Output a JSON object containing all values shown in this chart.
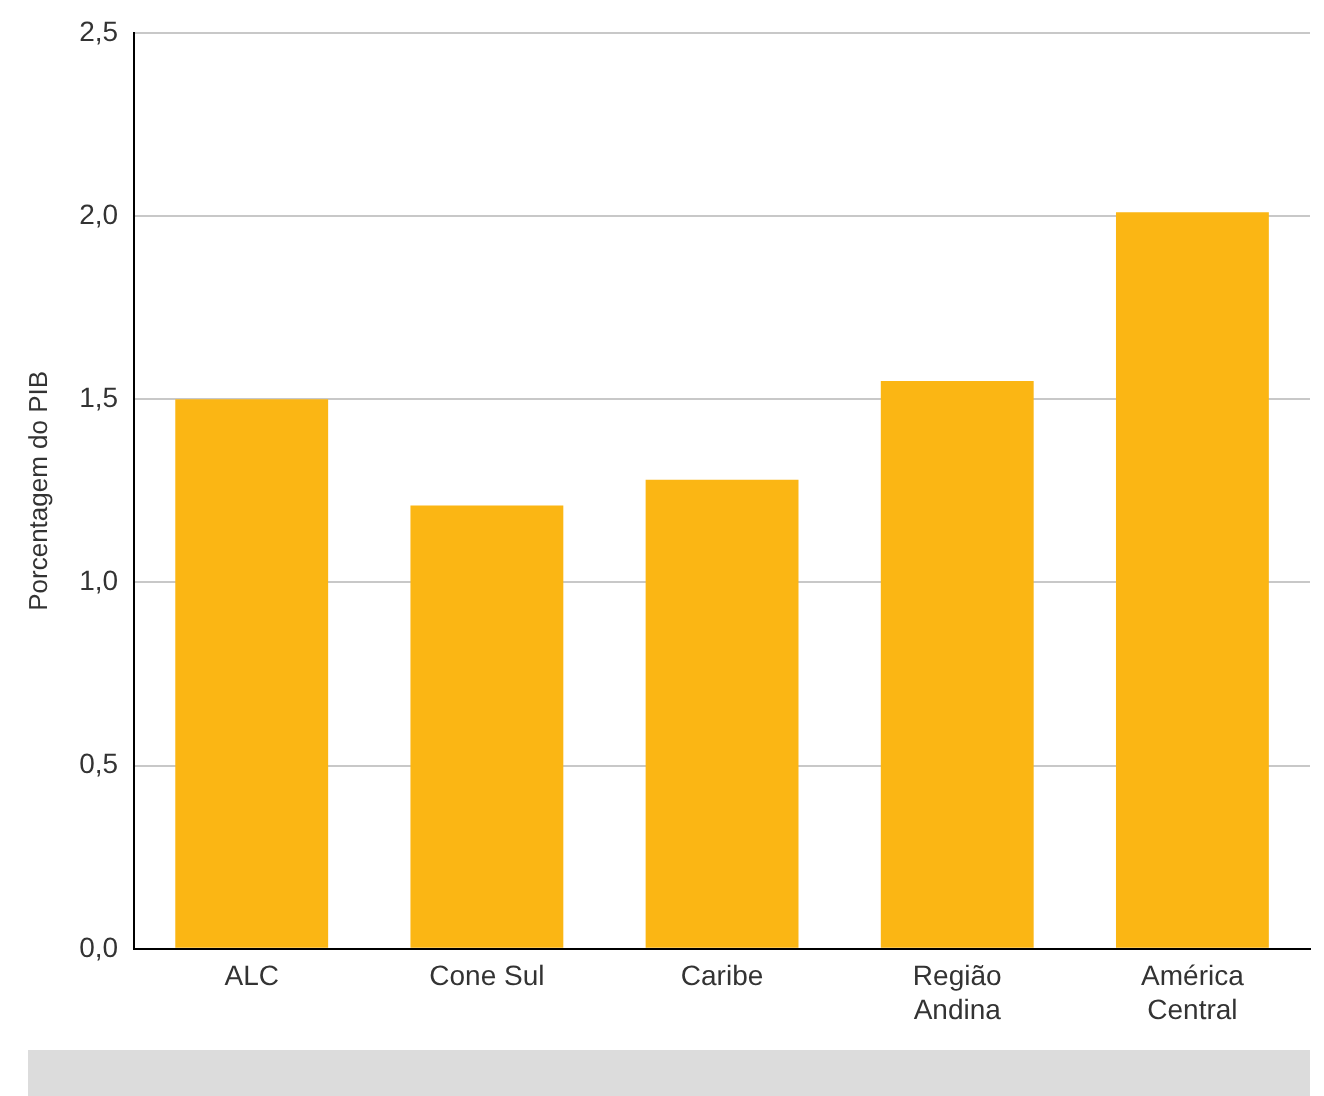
{
  "chart_data": {
    "type": "bar",
    "ylabel": "Porcentagem do PIB",
    "categories": [
      "ALC",
      "Cone Sul",
      "Caribe",
      "Região Andina",
      "América Central"
    ],
    "values": [
      1.5,
      1.21,
      1.28,
      1.55,
      2.01
    ],
    "color": "#fbb614",
    "ylim": [
      0,
      2.5
    ],
    "yticks": [
      {
        "value": 0,
        "label": "0,0"
      },
      {
        "value": 0.5,
        "label": "0,5"
      },
      {
        "value": 1,
        "label": "1,0"
      },
      {
        "value": 1.5,
        "label": "1,5"
      },
      {
        "value": 2,
        "label": "2,0"
      },
      {
        "value": 2.5,
        "label": "2,5"
      }
    ],
    "grid": "y"
  }
}
